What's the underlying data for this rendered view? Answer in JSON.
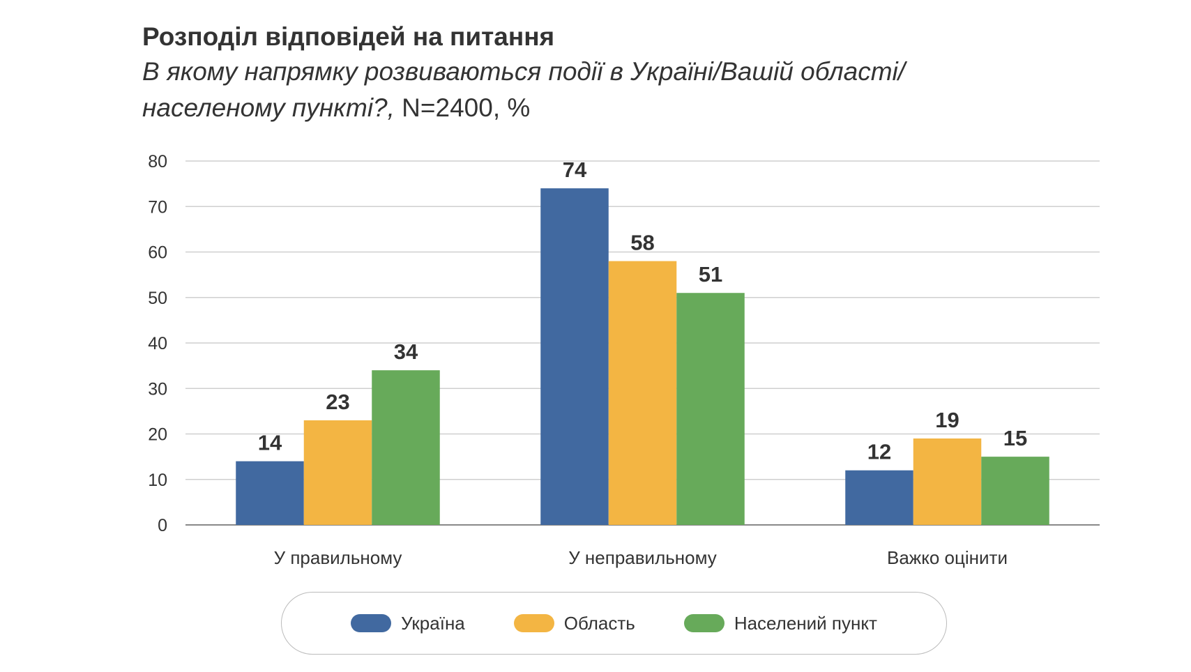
{
  "chart_data": {
    "type": "bar",
    "title": "Розподіл відповідей на питання",
    "subtitle_italic_line1": " В якому напрямку розвиваються події в Україні/Вашій області/",
    "subtitle_italic_line2": "населеному пункті?,",
    "subtitle_plain": " N=2400, %",
    "categories": [
      "У правильному",
      "У неправильному",
      "Важко оцінити"
    ],
    "series": [
      {
        "name": "Україна",
        "color": "#4169A0",
        "values": [
          14,
          74,
          12
        ]
      },
      {
        "name": "Область",
        "color": "#F3B543",
        "values": [
          23,
          58,
          19
        ]
      },
      {
        "name": "Населений пункт",
        "color": "#67AA5A",
        "values": [
          34,
          51,
          15
        ]
      }
    ],
    "ylim": [
      0,
      80
    ],
    "yticks": [
      0,
      10,
      20,
      30,
      40,
      50,
      60,
      70,
      80
    ],
    "grid": true,
    "legend_position": "bottom",
    "xlabel": "",
    "ylabel": ""
  }
}
